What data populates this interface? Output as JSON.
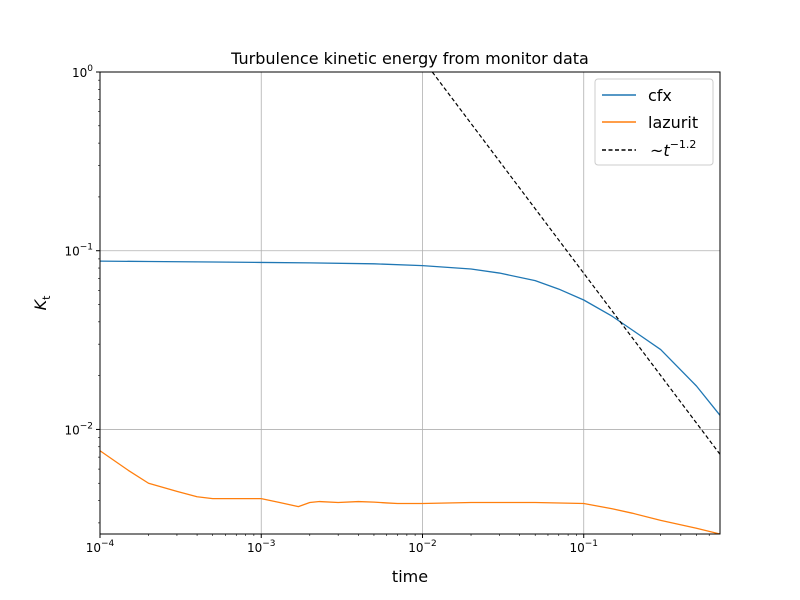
{
  "chart_data": {
    "type": "line",
    "title": "Turbulence kinetic energy from monitor data",
    "xlabel": "time",
    "ylabel": "K",
    "ylabel_subscript": "t",
    "xscale": "log",
    "yscale": "log",
    "xlim": [
      0.0001,
      0.7
    ],
    "ylim": [
      0.0026,
      1
    ],
    "grid": true,
    "legend_position": "top-right",
    "x_ticks": [
      {
        "value": 0.0001,
        "base": "10",
        "exp": "−4"
      },
      {
        "value": 0.001,
        "base": "10",
        "exp": "−3"
      },
      {
        "value": 0.01,
        "base": "10",
        "exp": "−2"
      },
      {
        "value": 0.1,
        "base": "10",
        "exp": "−1"
      }
    ],
    "y_ticks": [
      {
        "value": 0.01,
        "base": "10",
        "exp": "−2"
      },
      {
        "value": 0.1,
        "base": "10",
        "exp": "−1"
      },
      {
        "value": 1,
        "base": "10",
        "exp": "0"
      }
    ],
    "series": [
      {
        "name": "cfx",
        "color": "#1f77b4",
        "style": "solid",
        "x": [
          0.0001,
          0.0002,
          0.0005,
          0.001,
          0.002,
          0.005,
          0.01,
          0.02,
          0.03,
          0.05,
          0.07,
          0.1,
          0.15,
          0.2,
          0.3,
          0.5,
          0.7
        ],
        "y": [
          0.0875,
          0.087,
          0.0865,
          0.086,
          0.0855,
          0.0845,
          0.0825,
          0.079,
          0.075,
          0.068,
          0.061,
          0.053,
          0.043,
          0.036,
          0.028,
          0.0175,
          0.012
        ]
      },
      {
        "name": "lazurit",
        "color": "#ff7f0e",
        "style": "solid",
        "x": [
          0.0001,
          0.00015,
          0.0002,
          0.0003,
          0.0004,
          0.0005,
          0.0007,
          0.001,
          0.0013,
          0.0017,
          0.002,
          0.0023,
          0.003,
          0.004,
          0.005,
          0.006,
          0.007,
          0.01,
          0.02,
          0.05,
          0.1,
          0.15,
          0.2,
          0.3,
          0.5,
          0.7
        ],
        "y": [
          0.0076,
          0.0059,
          0.005,
          0.0045,
          0.0042,
          0.0041,
          0.0041,
          0.0041,
          0.0039,
          0.0037,
          0.0039,
          0.00395,
          0.0039,
          0.00395,
          0.00392,
          0.00388,
          0.00385,
          0.00385,
          0.0039,
          0.0039,
          0.00385,
          0.0036,
          0.0034,
          0.0031,
          0.0028,
          0.0026
        ]
      },
      {
        "name": "~t",
        "name_superscript": "−1.2",
        "color": "#000000",
        "style": "dashed",
        "x": [
          0.0115,
          0.7
        ],
        "y": [
          1.0,
          0.00726
        ]
      }
    ]
  }
}
